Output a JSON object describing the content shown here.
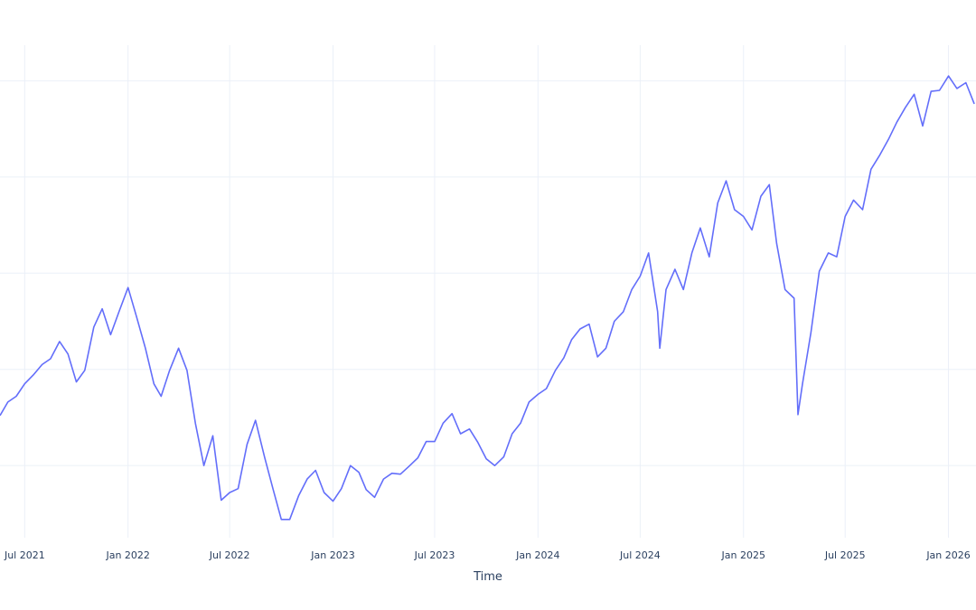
{
  "chart_data": {
    "type": "line",
    "title": "",
    "xlabel": "Time",
    "ylabel": "",
    "xlim": [
      "2021-05-18",
      "2026-02-19"
    ],
    "ylim": [
      0.25,
      5.37
    ],
    "grid": true,
    "line_color": "#636efa",
    "x_tick_labels": [
      "Jul 2021",
      "Jan 2022",
      "Jul 2022",
      "Jan 2023",
      "Jul 2023",
      "Jan 2024",
      "Jul 2024",
      "Jan 2025",
      "Jul 2025",
      "Jan 2026"
    ],
    "x_tick_dates": [
      "2021-07-01",
      "2022-01-01",
      "2022-07-01",
      "2023-01-01",
      "2023-07-01",
      "2024-01-01",
      "2024-07-01",
      "2025-01-01",
      "2025-07-01",
      "2026-01-01"
    ],
    "series": [
      {
        "points": [
          [
            "2021-05-18",
            1.52
          ],
          [
            "2021-06-01",
            1.66
          ],
          [
            "2021-06-16",
            1.72
          ],
          [
            "2021-07-01",
            1.85
          ],
          [
            "2021-07-16",
            1.94
          ],
          [
            "2021-08-01",
            2.05
          ],
          [
            "2021-08-16",
            2.11
          ],
          [
            "2021-09-01",
            2.29
          ],
          [
            "2021-09-16",
            2.16
          ],
          [
            "2021-10-01",
            1.87
          ],
          [
            "2021-10-16",
            1.99
          ],
          [
            "2021-11-01",
            2.44
          ],
          [
            "2021-11-16",
            2.63
          ],
          [
            "2021-12-01",
            2.36
          ],
          [
            "2021-12-16",
            2.6
          ],
          [
            "2022-01-01",
            2.85
          ],
          [
            "2022-01-16",
            2.55
          ],
          [
            "2022-02-01",
            2.22
          ],
          [
            "2022-02-16",
            1.85
          ],
          [
            "2022-03-01",
            1.72
          ],
          [
            "2022-03-16",
            1.99
          ],
          [
            "2022-04-01",
            2.22
          ],
          [
            "2022-04-16",
            1.99
          ],
          [
            "2022-05-01",
            1.44
          ],
          [
            "2022-05-16",
            1.0
          ],
          [
            "2022-06-01",
            1.31
          ],
          [
            "2022-06-16",
            0.64
          ],
          [
            "2022-07-01",
            0.72
          ],
          [
            "2022-07-16",
            0.76
          ],
          [
            "2022-08-01",
            1.22
          ],
          [
            "2022-08-16",
            1.47
          ],
          [
            "2022-09-01",
            1.09
          ],
          [
            "2022-09-16",
            0.76
          ],
          [
            "2022-10-01",
            0.44
          ],
          [
            "2022-10-16",
            0.44
          ],
          [
            "2022-11-01",
            0.69
          ],
          [
            "2022-11-16",
            0.86
          ],
          [
            "2022-12-01",
            0.95
          ],
          [
            "2022-12-16",
            0.72
          ],
          [
            "2023-01-01",
            0.63
          ],
          [
            "2023-01-16",
            0.76
          ],
          [
            "2023-02-01",
            1.0
          ],
          [
            "2023-02-16",
            0.93
          ],
          [
            "2023-03-01",
            0.75
          ],
          [
            "2023-03-16",
            0.67
          ],
          [
            "2023-04-01",
            0.86
          ],
          [
            "2023-04-16",
            0.92
          ],
          [
            "2023-05-01",
            0.91
          ],
          [
            "2023-05-16",
            0.99
          ],
          [
            "2023-06-01",
            1.08
          ],
          [
            "2023-06-16",
            1.25
          ],
          [
            "2023-07-01",
            1.25
          ],
          [
            "2023-07-16",
            1.44
          ],
          [
            "2023-08-01",
            1.54
          ],
          [
            "2023-08-16",
            1.33
          ],
          [
            "2023-09-01",
            1.38
          ],
          [
            "2023-09-16",
            1.24
          ],
          [
            "2023-10-01",
            1.07
          ],
          [
            "2023-10-16",
            1.0
          ],
          [
            "2023-11-01",
            1.09
          ],
          [
            "2023-11-16",
            1.33
          ],
          [
            "2023-12-01",
            1.44
          ],
          [
            "2023-12-16",
            1.66
          ],
          [
            "2024-01-01",
            1.74
          ],
          [
            "2024-01-16",
            1.8
          ],
          [
            "2024-02-01",
            1.99
          ],
          [
            "2024-02-16",
            2.12
          ],
          [
            "2024-03-01",
            2.31
          ],
          [
            "2024-03-16",
            2.42
          ],
          [
            "2024-04-01",
            2.47
          ],
          [
            "2024-04-16",
            2.13
          ],
          [
            "2024-05-01",
            2.22
          ],
          [
            "2024-05-16",
            2.5
          ],
          [
            "2024-06-01",
            2.6
          ],
          [
            "2024-06-16",
            2.83
          ],
          [
            "2024-07-01",
            2.97
          ],
          [
            "2024-07-16",
            3.21
          ],
          [
            "2024-08-01",
            2.6
          ],
          [
            "2024-08-05",
            2.22
          ],
          [
            "2024-08-16",
            2.83
          ],
          [
            "2024-09-01",
            3.04
          ],
          [
            "2024-09-16",
            2.83
          ],
          [
            "2024-10-01",
            3.21
          ],
          [
            "2024-10-16",
            3.47
          ],
          [
            "2024-11-01",
            3.17
          ],
          [
            "2024-11-16",
            3.73
          ],
          [
            "2024-12-01",
            3.96
          ],
          [
            "2024-12-16",
            3.66
          ],
          [
            "2025-01-01",
            3.59
          ],
          [
            "2025-01-16",
            3.45
          ],
          [
            "2025-02-01",
            3.8
          ],
          [
            "2025-02-16",
            3.92
          ],
          [
            "2025-03-01",
            3.31
          ],
          [
            "2025-03-16",
            2.83
          ],
          [
            "2025-04-01",
            2.74
          ],
          [
            "2025-04-08",
            1.53
          ],
          [
            "2025-04-16",
            1.85
          ],
          [
            "2025-05-01",
            2.38
          ],
          [
            "2025-05-16",
            3.02
          ],
          [
            "2025-06-01",
            3.21
          ],
          [
            "2025-06-16",
            3.17
          ],
          [
            "2025-07-01",
            3.59
          ],
          [
            "2025-07-16",
            3.76
          ],
          [
            "2025-08-01",
            3.66
          ],
          [
            "2025-08-16",
            4.08
          ],
          [
            "2025-09-01",
            4.23
          ],
          [
            "2025-09-16",
            4.39
          ],
          [
            "2025-10-01",
            4.57
          ],
          [
            "2025-10-16",
            4.72
          ],
          [
            "2025-11-01",
            4.86
          ],
          [
            "2025-11-16",
            4.53
          ],
          [
            "2025-12-01",
            4.89
          ],
          [
            "2025-12-16",
            4.9
          ],
          [
            "2026-01-01",
            5.05
          ],
          [
            "2026-01-16",
            4.92
          ],
          [
            "2026-02-01",
            4.98
          ],
          [
            "2026-02-16",
            4.76
          ]
        ]
      }
    ]
  }
}
